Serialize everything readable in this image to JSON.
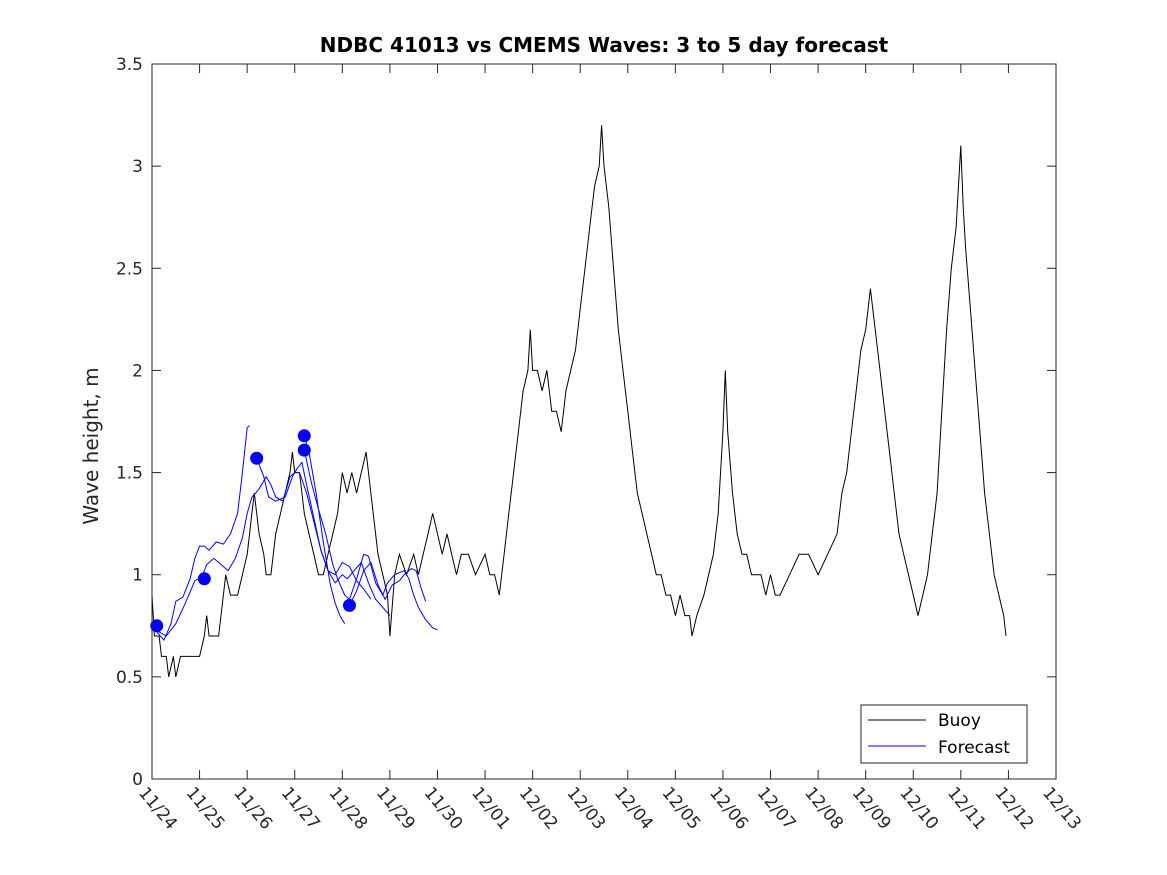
{
  "chart_data": {
    "type": "line",
    "title": "NDBC 41013 vs CMEMS Waves: 3 to 5 day forecast",
    "xlabel": "",
    "ylabel": "Wave height, m",
    "xlim": [
      0,
      19
    ],
    "ylim": [
      0,
      3.5
    ],
    "yticks": [
      0,
      0.5,
      1,
      1.5,
      2,
      2.5,
      3,
      3.5
    ],
    "ytick_labels": [
      "0",
      "0.5",
      "1",
      "1.5",
      "2",
      "2.5",
      "3",
      "3.5"
    ],
    "xtick_labels": [
      "11/24",
      "11/25",
      "11/26",
      "11/27",
      "11/28",
      "11/29",
      "11/30",
      "12/01",
      "12/02",
      "12/03",
      "12/04",
      "12/05",
      "12/06",
      "12/07",
      "12/08",
      "12/09",
      "12/10",
      "12/11",
      "12/12",
      "12/13"
    ],
    "legend": {
      "position": "bottom-right",
      "entries": [
        "Buoy",
        "Forecast"
      ]
    },
    "colors": {
      "buoy": "#000000",
      "forecast": "#0000ff"
    },
    "series": [
      {
        "name": "Buoy",
        "color": "#000000",
        "points": [
          [
            0,
            0.9
          ],
          [
            0.05,
            0.7
          ],
          [
            0.15,
            0.7
          ],
          [
            0.2,
            0.6
          ],
          [
            0.3,
            0.6
          ],
          [
            0.35,
            0.5
          ],
          [
            0.45,
            0.6
          ],
          [
            0.5,
            0.5
          ],
          [
            0.6,
            0.6
          ],
          [
            0.7,
            0.6
          ],
          [
            0.9,
            0.6
          ],
          [
            1.0,
            0.6
          ],
          [
            1.1,
            0.7
          ],
          [
            1.15,
            0.8
          ],
          [
            1.2,
            0.7
          ],
          [
            1.4,
            0.7
          ],
          [
            1.5,
            0.9
          ],
          [
            1.55,
            1.0
          ],
          [
            1.65,
            0.9
          ],
          [
            1.8,
            0.9
          ],
          [
            1.9,
            1.0
          ],
          [
            2.0,
            1.1
          ],
          [
            2.1,
            1.3
          ],
          [
            2.15,
            1.4
          ],
          [
            2.25,
            1.2
          ],
          [
            2.35,
            1.1
          ],
          [
            2.4,
            1.0
          ],
          [
            2.5,
            1.0
          ],
          [
            2.6,
            1.2
          ],
          [
            2.7,
            1.3
          ],
          [
            2.8,
            1.4
          ],
          [
            2.9,
            1.5
          ],
          [
            2.95,
            1.6
          ],
          [
            3.0,
            1.5
          ],
          [
            3.1,
            1.5
          ],
          [
            3.2,
            1.3
          ],
          [
            3.3,
            1.2
          ],
          [
            3.4,
            1.1
          ],
          [
            3.5,
            1.0
          ],
          [
            3.6,
            1.0
          ],
          [
            3.7,
            1.1
          ],
          [
            3.8,
            1.2
          ],
          [
            3.9,
            1.3
          ],
          [
            4.0,
            1.5
          ],
          [
            4.1,
            1.4
          ],
          [
            4.2,
            1.5
          ],
          [
            4.3,
            1.4
          ],
          [
            4.4,
            1.5
          ],
          [
            4.5,
            1.6
          ],
          [
            4.55,
            1.5
          ],
          [
            4.65,
            1.3
          ],
          [
            4.75,
            1.1
          ],
          [
            4.85,
            1.0
          ],
          [
            4.95,
            0.9
          ],
          [
            5.0,
            0.7
          ],
          [
            5.1,
            1.0
          ],
          [
            5.2,
            1.1
          ],
          [
            5.35,
            1.0
          ],
          [
            5.5,
            1.1
          ],
          [
            5.6,
            1.0
          ],
          [
            5.7,
            1.1
          ],
          [
            5.8,
            1.2
          ],
          [
            5.9,
            1.3
          ],
          [
            6.0,
            1.2
          ],
          [
            6.1,
            1.1
          ],
          [
            6.2,
            1.2
          ],
          [
            6.3,
            1.1
          ],
          [
            6.4,
            1.0
          ],
          [
            6.5,
            1.1
          ],
          [
            6.65,
            1.1
          ],
          [
            6.8,
            1.0
          ],
          [
            7.0,
            1.1
          ],
          [
            7.1,
            1.0
          ],
          [
            7.2,
            1.0
          ],
          [
            7.3,
            0.9
          ],
          [
            7.4,
            1.1
          ],
          [
            7.5,
            1.3
          ],
          [
            7.6,
            1.5
          ],
          [
            7.7,
            1.7
          ],
          [
            7.8,
            1.9
          ],
          [
            7.9,
            2.0
          ],
          [
            7.95,
            2.2
          ],
          [
            8.0,
            2.0
          ],
          [
            8.1,
            2.0
          ],
          [
            8.2,
            1.9
          ],
          [
            8.3,
            2.0
          ],
          [
            8.4,
            1.8
          ],
          [
            8.5,
            1.8
          ],
          [
            8.6,
            1.7
          ],
          [
            8.7,
            1.9
          ],
          [
            8.8,
            2.0
          ],
          [
            8.9,
            2.1
          ],
          [
            9.0,
            2.3
          ],
          [
            9.1,
            2.5
          ],
          [
            9.2,
            2.7
          ],
          [
            9.3,
            2.9
          ],
          [
            9.4,
            3.0
          ],
          [
            9.45,
            3.2
          ],
          [
            9.5,
            3.0
          ],
          [
            9.6,
            2.8
          ],
          [
            9.7,
            2.5
          ],
          [
            9.8,
            2.2
          ],
          [
            9.9,
            2.0
          ],
          [
            10.0,
            1.8
          ],
          [
            10.1,
            1.6
          ],
          [
            10.2,
            1.4
          ],
          [
            10.3,
            1.3
          ],
          [
            10.4,
            1.2
          ],
          [
            10.5,
            1.1
          ],
          [
            10.6,
            1.0
          ],
          [
            10.7,
            1.0
          ],
          [
            10.8,
            0.9
          ],
          [
            10.9,
            0.9
          ],
          [
            11.0,
            0.8
          ],
          [
            11.1,
            0.9
          ],
          [
            11.2,
            0.8
          ],
          [
            11.3,
            0.8
          ],
          [
            11.35,
            0.7
          ],
          [
            11.45,
            0.8
          ],
          [
            11.6,
            0.9
          ],
          [
            11.8,
            1.1
          ],
          [
            11.9,
            1.3
          ],
          [
            12.0,
            1.7
          ],
          [
            12.05,
            2.0
          ],
          [
            12.1,
            1.7
          ],
          [
            12.2,
            1.4
          ],
          [
            12.3,
            1.2
          ],
          [
            12.4,
            1.1
          ],
          [
            12.5,
            1.1
          ],
          [
            12.6,
            1.0
          ],
          [
            12.8,
            1.0
          ],
          [
            12.9,
            0.9
          ],
          [
            13.0,
            1.0
          ],
          [
            13.1,
            0.9
          ],
          [
            13.2,
            0.9
          ],
          [
            13.4,
            1.0
          ],
          [
            13.6,
            1.1
          ],
          [
            13.8,
            1.1
          ],
          [
            14.0,
            1.0
          ],
          [
            14.2,
            1.1
          ],
          [
            14.4,
            1.2
          ],
          [
            14.5,
            1.4
          ],
          [
            14.6,
            1.5
          ],
          [
            14.7,
            1.7
          ],
          [
            14.8,
            1.9
          ],
          [
            14.9,
            2.1
          ],
          [
            15.0,
            2.2
          ],
          [
            15.1,
            2.4
          ],
          [
            15.15,
            2.3
          ],
          [
            15.3,
            2.0
          ],
          [
            15.4,
            1.8
          ],
          [
            15.5,
            1.6
          ],
          [
            15.6,
            1.4
          ],
          [
            15.7,
            1.2
          ],
          [
            15.8,
            1.1
          ],
          [
            15.9,
            1.0
          ],
          [
            16.0,
            0.9
          ],
          [
            16.1,
            0.8
          ],
          [
            16.2,
            0.9
          ],
          [
            16.3,
            1.0
          ],
          [
            16.4,
            1.2
          ],
          [
            16.5,
            1.4
          ],
          [
            16.6,
            1.8
          ],
          [
            16.7,
            2.2
          ],
          [
            16.8,
            2.5
          ],
          [
            16.9,
            2.7
          ],
          [
            17.0,
            3.1
          ],
          [
            17.05,
            2.8
          ],
          [
            17.1,
            2.6
          ],
          [
            17.2,
            2.3
          ],
          [
            17.3,
            2.0
          ],
          [
            17.4,
            1.7
          ],
          [
            17.5,
            1.4
          ],
          [
            17.6,
            1.2
          ],
          [
            17.7,
            1.0
          ],
          [
            17.8,
            0.9
          ],
          [
            17.9,
            0.8
          ],
          [
            17.95,
            0.7
          ]
        ]
      },
      {
        "name": "Forecast",
        "color": "#0000ff",
        "lines": [
          [
            [
              0.0,
              0.73
            ],
            [
              0.1,
              0.72
            ],
            [
              0.25,
              0.68
            ],
            [
              0.4,
              0.76
            ],
            [
              0.5,
              0.87
            ],
            [
              0.65,
              0.89
            ],
            [
              0.8,
              0.98
            ],
            [
              0.9,
              1.08
            ],
            [
              1.0,
              1.14
            ],
            [
              1.1,
              1.14
            ],
            [
              1.2,
              1.12
            ],
            [
              1.35,
              1.16
            ],
            [
              1.5,
              1.15
            ],
            [
              1.65,
              1.2
            ],
            [
              1.8,
              1.3
            ],
            [
              1.9,
              1.5
            ],
            [
              2.0,
              1.72
            ],
            [
              2.05,
              1.73
            ]
          ],
          [
            [
              0.0,
              0.74
            ],
            [
              0.15,
              0.72
            ],
            [
              0.3,
              0.7
            ],
            [
              0.5,
              0.76
            ],
            [
              0.7,
              0.86
            ],
            [
              0.9,
              0.97
            ],
            [
              1.05,
              0.99
            ],
            [
              1.15,
              1.05
            ],
            [
              1.3,
              1.08
            ],
            [
              1.45,
              1.05
            ],
            [
              1.6,
              1.02
            ],
            [
              1.75,
              1.08
            ],
            [
              1.9,
              1.18
            ],
            [
              2.0,
              1.3
            ],
            [
              2.1,
              1.38
            ],
            [
              2.25,
              1.42
            ],
            [
              2.4,
              1.48
            ],
            [
              2.5,
              1.44
            ],
            [
              2.6,
              1.38
            ],
            [
              2.75,
              1.36
            ],
            [
              2.9,
              1.48
            ],
            [
              3.0,
              1.5
            ],
            [
              3.1,
              1.5
            ],
            [
              3.25,
              1.4
            ],
            [
              3.4,
              1.26
            ],
            [
              3.55,
              1.12
            ],
            [
              3.7,
              1.02
            ],
            [
              3.85,
              0.96
            ],
            [
              4.0,
              1.0
            ],
            [
              4.1,
              0.98
            ],
            [
              4.25,
              1.02
            ],
            [
              4.4,
              1.06
            ],
            [
              4.55,
              0.96
            ],
            [
              4.7,
              0.88
            ],
            [
              4.85,
              0.84
            ],
            [
              5.0,
              0.8
            ]
          ],
          [
            [
              2.2,
              1.57
            ],
            [
              2.35,
              1.48
            ],
            [
              2.45,
              1.38
            ],
            [
              2.6,
              1.36
            ],
            [
              2.8,
              1.38
            ],
            [
              2.95,
              1.48
            ],
            [
              3.05,
              1.52
            ],
            [
              3.15,
              1.55
            ],
            [
              3.25,
              1.44
            ],
            [
              3.4,
              1.28
            ],
            [
              3.55,
              1.12
            ],
            [
              3.7,
              1.02
            ],
            [
              3.85,
              1.0
            ],
            [
              4.0,
              1.06
            ],
            [
              4.15,
              1.04
            ],
            [
              4.3,
              0.97
            ],
            [
              4.45,
              0.93
            ],
            [
              4.6,
              0.88
            ]
          ],
          [
            [
              3.2,
              1.68
            ],
            [
              3.3,
              1.6
            ],
            [
              3.45,
              1.4
            ],
            [
              3.6,
              1.16
            ],
            [
              3.75,
              0.95
            ],
            [
              3.85,
              0.86
            ],
            [
              3.95,
              0.8
            ],
            [
              4.05,
              0.76
            ]
          ],
          [
            [
              3.2,
              1.61
            ],
            [
              3.35,
              1.45
            ],
            [
              3.5,
              1.32
            ],
            [
              3.65,
              1.2
            ],
            [
              3.8,
              1.05
            ],
            [
              3.9,
              0.98
            ],
            [
              4.05,
              0.9
            ],
            [
              4.15,
              0.88
            ],
            [
              4.3,
              0.98
            ],
            [
              4.45,
              1.1
            ],
            [
              4.55,
              1.09
            ],
            [
              4.7,
              0.96
            ],
            [
              4.85,
              0.9
            ],
            [
              4.95,
              0.96
            ],
            [
              5.1,
              1.0
            ],
            [
              5.3,
              1.02
            ],
            [
              5.4,
              0.98
            ],
            [
              5.5,
              0.9
            ],
            [
              5.6,
              0.84
            ],
            [
              5.75,
              0.78
            ],
            [
              5.9,
              0.74
            ],
            [
              6.0,
              0.73
            ]
          ],
          [
            [
              4.15,
              0.85
            ],
            [
              4.3,
              0.92
            ],
            [
              4.45,
              1.02
            ],
            [
              4.6,
              1.06
            ],
            [
              4.75,
              0.95
            ],
            [
              4.9,
              0.88
            ],
            [
              5.05,
              0.95
            ],
            [
              5.2,
              0.97
            ],
            [
              5.3,
              1.0
            ],
            [
              5.45,
              1.03
            ],
            [
              5.55,
              1.02
            ],
            [
              5.65,
              0.94
            ],
            [
              5.75,
              0.87
            ]
          ]
        ],
        "markers": [
          [
            0.1,
            0.75
          ],
          [
            1.1,
            0.98
          ],
          [
            2.2,
            1.57
          ],
          [
            3.2,
            1.68
          ],
          [
            3.2,
            1.61
          ],
          [
            4.15,
            0.85
          ]
        ]
      }
    ]
  }
}
